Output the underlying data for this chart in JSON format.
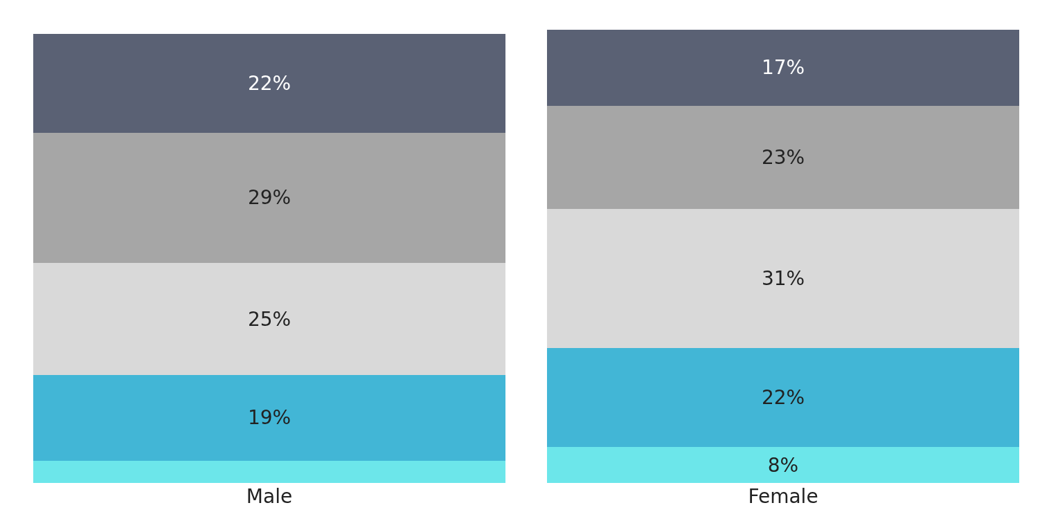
{
  "chart_data": {
    "type": "bar",
    "stacked": true,
    "categories": [
      "Male",
      "Female"
    ],
    "series": [
      {
        "color": "#6ce6ea",
        "values": [
          5,
          8
        ],
        "value_labels": [
          null,
          "8%"
        ]
      },
      {
        "color": "#42b6d6",
        "values": [
          19,
          22
        ],
        "value_labels": [
          "19%",
          "22%"
        ]
      },
      {
        "color": "#d9d9d9",
        "values": [
          25,
          31
        ],
        "value_labels": [
          "25%",
          "31%"
        ]
      },
      {
        "color": "#a6a6a6",
        "values": [
          29,
          23
        ],
        "value_labels": [
          "29%",
          "23%"
        ]
      },
      {
        "color": "#5a6174",
        "values": [
          22,
          17
        ],
        "value_labels": [
          "22%",
          "17%"
        ]
      }
    ],
    "tick_labels": "x"
  }
}
